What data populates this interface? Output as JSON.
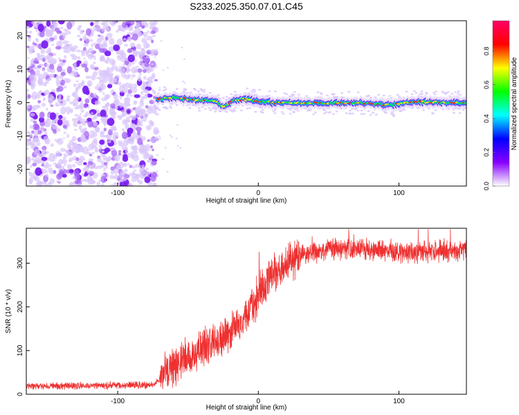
{
  "page": {
    "title": "S233.2025.350.07.01.C45"
  },
  "chart_data": [
    {
      "type": "heatmap",
      "title": "S233.2025.350.07.01.C45",
      "xlabel": "Height of straight line (km)",
      "ylabel": "Frequency (Hz)",
      "xlim": [
        -165,
        148
      ],
      "ylim": [
        -25,
        24.5
      ],
      "x_ticks": [
        -100,
        0,
        100
      ],
      "x_tick_labels": [
        "-100",
        "0",
        "100"
      ],
      "y_ticks": [
        -20,
        -10,
        0,
        10,
        20
      ],
      "y_tick_labels": [
        "-20",
        "-10",
        "0",
        "10",
        "20"
      ],
      "colorbar": {
        "label": "Normalized spectral amplitude",
        "range": [
          0,
          0.98
        ],
        "ticks": [
          0.0,
          0.2,
          0.4,
          0.6,
          0.8
        ],
        "tick_labels": [
          "0.0",
          "0.2",
          "0.4",
          "0.6",
          "0.8"
        ],
        "colormap": [
          "#ffffff",
          "#8800ff",
          "#0000ff",
          "#00ffff",
          "#00ff00",
          "#ffff00",
          "#ff0000",
          "#ff0066"
        ]
      },
      "noise_region_x": [
        -165,
        -72
      ],
      "signal_track": [
        {
          "x": -72,
          "f": 1.0
        },
        {
          "x": -60,
          "f": 1.5
        },
        {
          "x": -50,
          "f": 1.0
        },
        {
          "x": -40,
          "f": 0.8
        },
        {
          "x": -30,
          "f": 0.3
        },
        {
          "x": -24,
          "f": -1.5
        },
        {
          "x": -18,
          "f": 0.5
        },
        {
          "x": -10,
          "f": 1.0
        },
        {
          "x": 0,
          "f": 0.5
        },
        {
          "x": 10,
          "f": 0.0
        },
        {
          "x": 30,
          "f": 0.0
        },
        {
          "x": 50,
          "f": -0.3
        },
        {
          "x": 70,
          "f": 0.0
        },
        {
          "x": 85,
          "f": -0.5
        },
        {
          "x": 95,
          "f": -0.8
        },
        {
          "x": 100,
          "f": -0.2
        },
        {
          "x": 110,
          "f": 0.2
        },
        {
          "x": 130,
          "f": 0.0
        },
        {
          "x": 148,
          "f": 0.0
        }
      ]
    },
    {
      "type": "line",
      "xlabel": "Height of straight line (km)",
      "ylabel": "SNR (10 * v/v)",
      "xlim": [
        -165,
        148
      ],
      "ylim": [
        0,
        380
      ],
      "x_ticks": [
        -100,
        0,
        100
      ],
      "x_tick_labels": [
        "-100",
        "0",
        "100"
      ],
      "y_ticks": [
        0,
        100,
        200,
        300
      ],
      "y_tick_labels": [
        "0",
        "100",
        "200",
        "300"
      ],
      "series": [
        {
          "name": "SNR",
          "color": "#ee3030",
          "trend": [
            {
              "x": -165,
              "y": 18
            },
            {
              "x": -110,
              "y": 20
            },
            {
              "x": -75,
              "y": 22
            },
            {
              "x": -65,
              "y": 50
            },
            {
              "x": -55,
              "y": 80
            },
            {
              "x": -45,
              "y": 95
            },
            {
              "x": -35,
              "y": 110
            },
            {
              "x": -25,
              "y": 135
            },
            {
              "x": -15,
              "y": 155
            },
            {
              "x": -8,
              "y": 190
            },
            {
              "x": 0,
              "y": 225
            },
            {
              "x": 8,
              "y": 270
            },
            {
              "x": 18,
              "y": 295
            },
            {
              "x": 30,
              "y": 318
            },
            {
              "x": 50,
              "y": 332
            },
            {
              "x": 80,
              "y": 330
            },
            {
              "x": 110,
              "y": 325
            },
            {
              "x": 148,
              "y": 332
            }
          ]
        }
      ]
    }
  ]
}
